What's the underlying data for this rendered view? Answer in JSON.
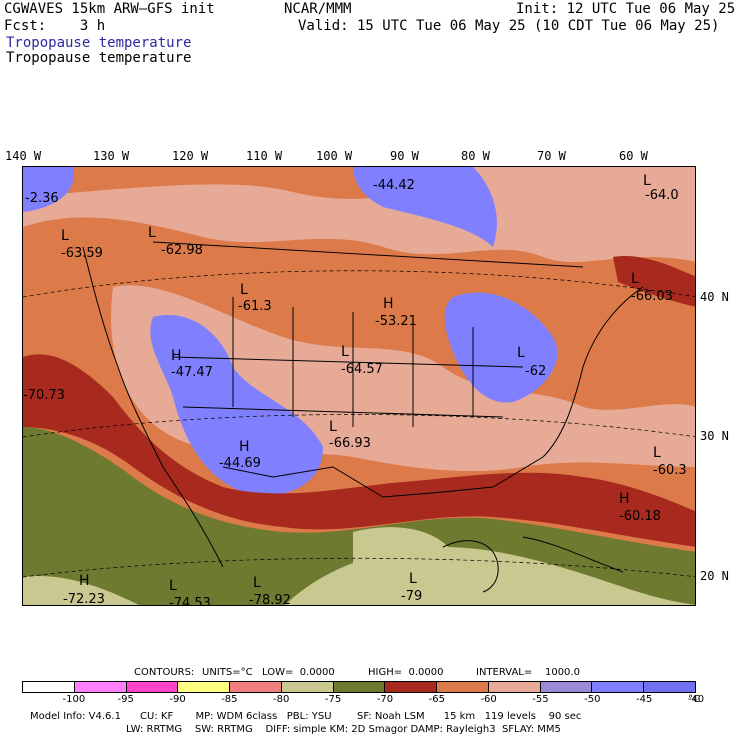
{
  "header": {
    "model_title": "CGWAVES 15km ARW—GFS init",
    "org": "NCAR/MMM",
    "init": "Init: 12 UTC Tue 06 May 25",
    "fcst": "Fcst:    3 h",
    "valid": "Valid: 15 UTC Tue 06 May 25 (10 CDT Tue 06 May 25)",
    "field_title_blue": "Tropopause temperature",
    "field_title_black": "Tropopause temperature"
  },
  "axes": {
    "longitude_labels": [
      "140 W",
      "130 W",
      "120 W",
      "110 W",
      "100 W",
      "90 W",
      "80 W",
      "70 W",
      "60 W"
    ],
    "latitude_labels": [
      "40 N",
      "30 N",
      "20 N"
    ]
  },
  "map_labels": [
    {
      "text": "-2.36"
    },
    {
      "text": "-44.42"
    },
    {
      "text": "L"
    },
    {
      "text": "-63.59"
    },
    {
      "text": "L"
    },
    {
      "text": "-62.98"
    },
    {
      "text": "L"
    },
    {
      "text": "-64.0"
    },
    {
      "text": "L"
    },
    {
      "text": "-61.3"
    },
    {
      "text": "H"
    },
    {
      "text": "-53.21"
    },
    {
      "text": "L"
    },
    {
      "text": "-66.03"
    },
    {
      "text": "H"
    },
    {
      "text": "-47.47"
    },
    {
      "text": "L"
    },
    {
      "text": "-64.57"
    },
    {
      "text": "L"
    },
    {
      "text": "-62"
    },
    {
      "text": "-70.73"
    },
    {
      "text": "L"
    },
    {
      "text": "-66.93"
    },
    {
      "text": "H"
    },
    {
      "text": "-44.69"
    },
    {
      "text": "L"
    },
    {
      "text": "-60.3"
    },
    {
      "text": "H"
    },
    {
      "text": "-60.18"
    },
    {
      "text": "H"
    },
    {
      "text": "-72.23"
    },
    {
      "text": "L"
    },
    {
      "text": "-74.53"
    },
    {
      "text": "L"
    },
    {
      "text": "-78.92"
    },
    {
      "text": "L"
    },
    {
      "text": "-79"
    }
  ],
  "contours_info": {
    "contours": "CONTOURS:",
    "units": "UNITS=°C",
    "low": "LOW=  0.0000",
    "high": "HIGH=  0.0000",
    "interval": "INTERVAL=    1000.0"
  },
  "colorbar": {
    "colors": [
      "#ffffff",
      "#ff80ff",
      "#ff44cc",
      "#ffff80",
      "#f08080",
      "#c8c890",
      "#6e7a30",
      "#a82a1e",
      "#dd7a4a",
      "#e6aa96",
      "#9b8ad8",
      "#8080ff",
      "#7070f0"
    ],
    "ticks": [
      "-100",
      "-95",
      "-90",
      "-85",
      "-80",
      "-75",
      "-70",
      "-65",
      "-60",
      "-55",
      "-50",
      "-45",
      "-40"
    ],
    "unit": "°C"
  },
  "footer": {
    "line1": "Model Info: V4.6.1      CU: KF       MP: WDM 6class   PBL: YSU        SF: Noah LSM      15 km   119 levels    90 sec",
    "line2": "LW: RRTMG    SW: RRTMG    DIFF: simple KM: 2D Smagor DAMP: Rayleigh3  SFLAY: MM5"
  }
}
